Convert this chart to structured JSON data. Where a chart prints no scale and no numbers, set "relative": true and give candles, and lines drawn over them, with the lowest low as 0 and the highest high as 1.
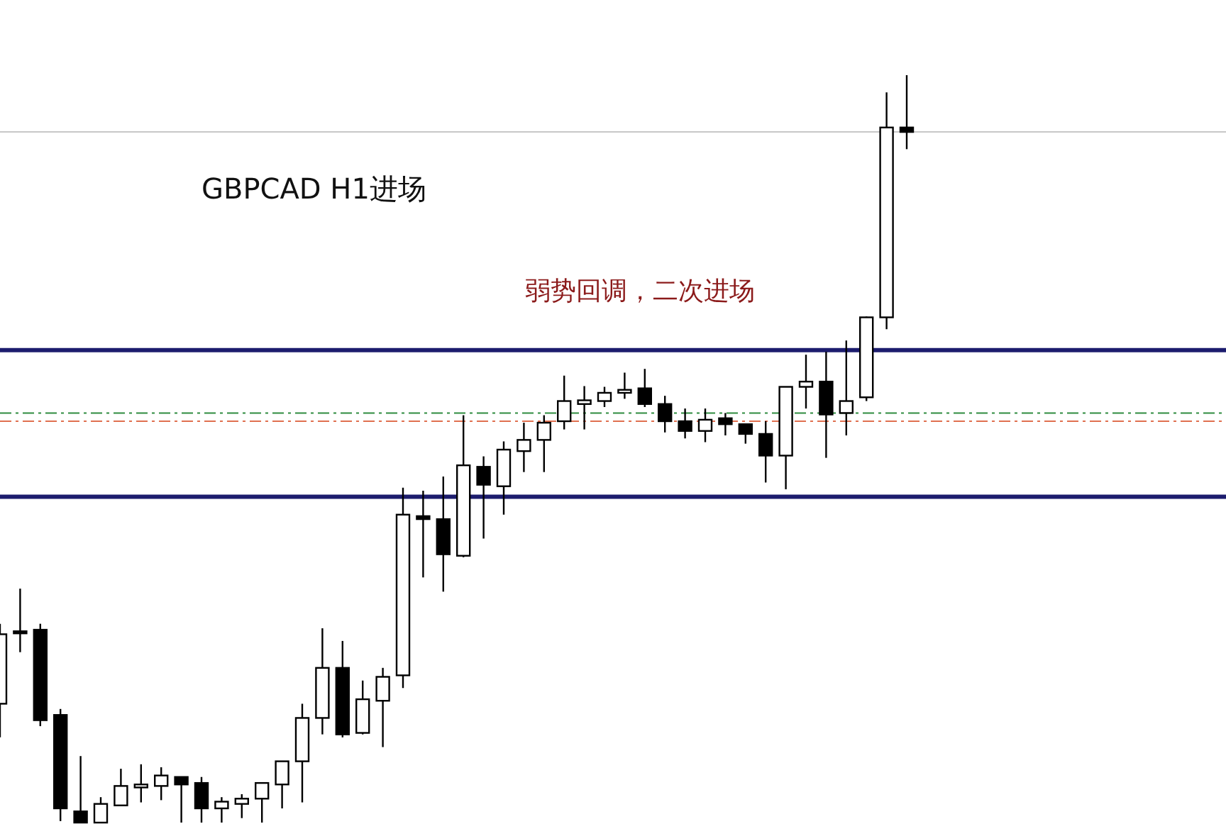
{
  "chart_data": {
    "type": "candlestick",
    "relative": true,
    "title": "GBPCAD H1进场",
    "annotations": [
      "弱势回调，二次进场"
    ],
    "categories": [
      null,
      null,
      null,
      null,
      null,
      null,
      null,
      null,
      null,
      null,
      null,
      null,
      null,
      null,
      null,
      null,
      null,
      null,
      null,
      null,
      null,
      null,
      null,
      null,
      null,
      null,
      null,
      null,
      null,
      null,
      null,
      null,
      null,
      null,
      null,
      null,
      null,
      null,
      null,
      null,
      null,
      null,
      null,
      null,
      null,
      null
    ],
    "ohlc": [
      [
        0.159,
        0.266,
        0.114,
        0.252
      ],
      [
        0.256,
        0.313,
        0.228,
        0.254
      ],
      [
        0.258,
        0.266,
        0.129,
        0.137
      ],
      [
        0.144,
        0.152,
        0.002,
        0.019
      ],
      [
        0.015,
        0.089,
        0.0,
        0.0
      ],
      [
        0.0,
        0.034,
        0.0,
        0.025
      ],
      [
        0.023,
        0.072,
        0.023,
        0.049
      ],
      [
        0.047,
        0.078,
        0.027,
        0.051
      ],
      [
        0.049,
        0.074,
        0.03,
        0.063
      ],
      [
        0.061,
        0.061,
        0.0,
        0.051
      ],
      [
        0.053,
        0.061,
        0.0,
        0.019
      ],
      [
        0.019,
        0.034,
        0.0,
        0.028
      ],
      [
        0.025,
        0.038,
        0.006,
        0.032
      ],
      [
        0.032,
        0.053,
        0.0,
        0.053
      ],
      [
        0.051,
        0.082,
        0.019,
        0.082
      ],
      [
        0.082,
        0.159,
        0.027,
        0.14
      ],
      [
        0.14,
        0.26,
        0.118,
        0.207
      ],
      [
        0.207,
        0.243,
        0.114,
        0.118
      ],
      [
        0.12,
        0.19,
        0.118,
        0.165
      ],
      [
        0.163,
        0.207,
        0.101,
        0.195
      ],
      [
        0.197,
        0.448,
        0.18,
        0.412
      ],
      [
        0.41,
        0.444,
        0.328,
        0.406
      ],
      [
        0.406,
        0.463,
        0.309,
        0.359
      ],
      [
        0.357,
        0.545,
        0.355,
        0.478
      ],
      [
        0.476,
        0.49,
        0.38,
        0.452
      ],
      [
        0.45,
        0.51,
        0.412,
        0.499
      ],
      [
        0.497,
        0.535,
        0.469,
        0.512
      ],
      [
        0.512,
        0.545,
        0.469,
        0.535
      ],
      [
        0.537,
        0.598,
        0.526,
        0.564
      ],
      [
        0.56,
        0.584,
        0.526,
        0.565
      ],
      [
        0.564,
        0.583,
        0.556,
        0.575
      ],
      [
        0.575,
        0.602,
        0.567,
        0.579
      ],
      [
        0.581,
        0.607,
        0.556,
        0.56
      ],
      [
        0.56,
        0.571,
        0.522,
        0.537
      ],
      [
        0.537,
        0.554,
        0.514,
        0.524
      ],
      [
        0.524,
        0.554,
        0.509,
        0.539
      ],
      [
        0.541,
        0.548,
        0.518,
        0.533
      ],
      [
        0.533,
        0.533,
        0.507,
        0.52
      ],
      [
        0.52,
        0.537,
        0.455,
        0.491
      ],
      [
        0.491,
        0.583,
        0.446,
        0.583
      ],
      [
        0.583,
        0.626,
        0.554,
        0.59
      ],
      [
        0.59,
        0.63,
        0.488,
        0.546
      ],
      [
        0.548,
        0.645,
        0.518,
        0.564
      ],
      [
        0.569,
        0.677,
        0.564,
        0.676
      ],
      [
        0.676,
        0.977,
        0.66,
        0.93
      ],
      [
        0.93,
        1.0,
        0.901,
        0.924
      ]
    ],
    "ref_lines": [
      {
        "axis": "y",
        "value": 0.924,
        "color": "#c8c8c8",
        "line_style": "solid"
      },
      {
        "axis": "y",
        "value": 0.632,
        "color": "#1c1c6e",
        "line_style": "solid"
      },
      {
        "axis": "y",
        "value": 0.548,
        "color": "#2e8b3e",
        "line_style": "dashdot"
      },
      {
        "axis": "y",
        "value": 0.537,
        "color": "#e07050",
        "line_style": "dashdot"
      },
      {
        "axis": "y",
        "value": 0.436,
        "color": "#1c1c6e",
        "line_style": "solid"
      }
    ]
  }
}
